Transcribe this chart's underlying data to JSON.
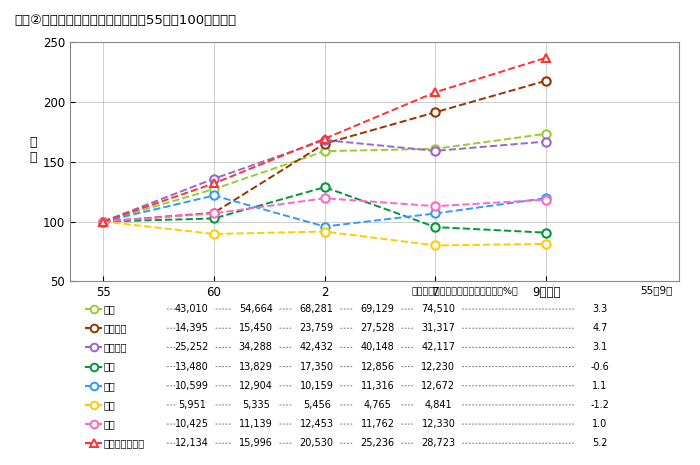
{
  "title": "図表②　産業別労働生産性の比較（55年を100とする）",
  "ylabel_lines": [
    "指",
    "数"
  ],
  "xlabel_years": [
    "55",
    "60",
    "2",
    "7",
    "9（年）"
  ],
  "x_positions": [
    0,
    1,
    2,
    3,
    4
  ],
  "xlim": [
    -0.3,
    5.2
  ],
  "ylim": [
    50,
    250
  ],
  "yticks": [
    50,
    100,
    150,
    200,
    250
  ],
  "series": [
    {
      "name": "鉄鋼",
      "raw": [
        43010,
        54664,
        68281,
        69129,
        74510
      ],
      "color": "#99cc33",
      "marker": "o",
      "growth": 3.3
    },
    {
      "name": "電気機械",
      "raw": [
        14395,
        15450,
        23759,
        27528,
        31317
      ],
      "color": "#993300",
      "marker": "o",
      "growth": 4.7
    },
    {
      "name": "輸送機械",
      "raw": [
        25252,
        34288,
        42432,
        40148,
        42117
      ],
      "color": "#9966cc",
      "marker": "o",
      "growth": 3.1
    },
    {
      "name": "建設",
      "raw": [
        13480,
        13829,
        17350,
        12856,
        12230
      ],
      "color": "#009933",
      "marker": "o",
      "growth": -0.6
    },
    {
      "name": "卸売",
      "raw": [
        10599,
        12904,
        10159,
        11316,
        12672
      ],
      "color": "#3399ff",
      "marker": "o",
      "growth": 1.1
    },
    {
      "name": "小売",
      "raw": [
        5951,
        5335,
        5456,
        4765,
        4841
      ],
      "color": "#ffcc00",
      "marker": "o",
      "growth": -1.2
    },
    {
      "name": "運輸",
      "raw": [
        10425,
        11139,
        12453,
        11762,
        12330
      ],
      "color": "#ff66cc",
      "marker": "o",
      "growth": 1.0
    },
    {
      "name": "情報通信産業計",
      "raw": [
        12134,
        15996,
        20530,
        25236,
        28723
      ],
      "color": "#ff3333",
      "marker": "^",
      "growth": 5.2
    }
  ],
  "table_bg": "#ddd0dd",
  "fig_bg": "#ffffff",
  "plot_bg": "#ffffff"
}
